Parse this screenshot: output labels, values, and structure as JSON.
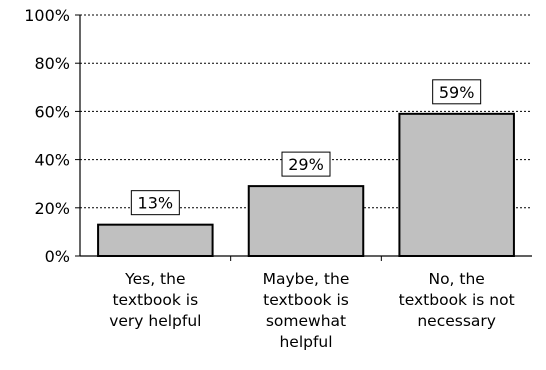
{
  "chart_data": {
    "type": "bar",
    "categories": [
      [
        "Yes, the",
        "textbook is",
        "very helpful"
      ],
      [
        "Maybe, the",
        "textbook is",
        "somewhat",
        "helpful"
      ],
      [
        "No, the",
        "textbook is not",
        "necessary"
      ]
    ],
    "values": [
      13,
      29,
      59
    ],
    "data_labels": [
      "13%",
      "29%",
      "59%"
    ],
    "yticks": [
      "0%",
      "20%",
      "40%",
      "60%",
      "80%",
      "100%"
    ],
    "ylim": [
      0,
      100
    ],
    "title": "",
    "xlabel": "",
    "ylabel": "",
    "grid": "horizontal dashed",
    "bar_color": "#c0c0c0",
    "bar_stroke": "#000000"
  }
}
